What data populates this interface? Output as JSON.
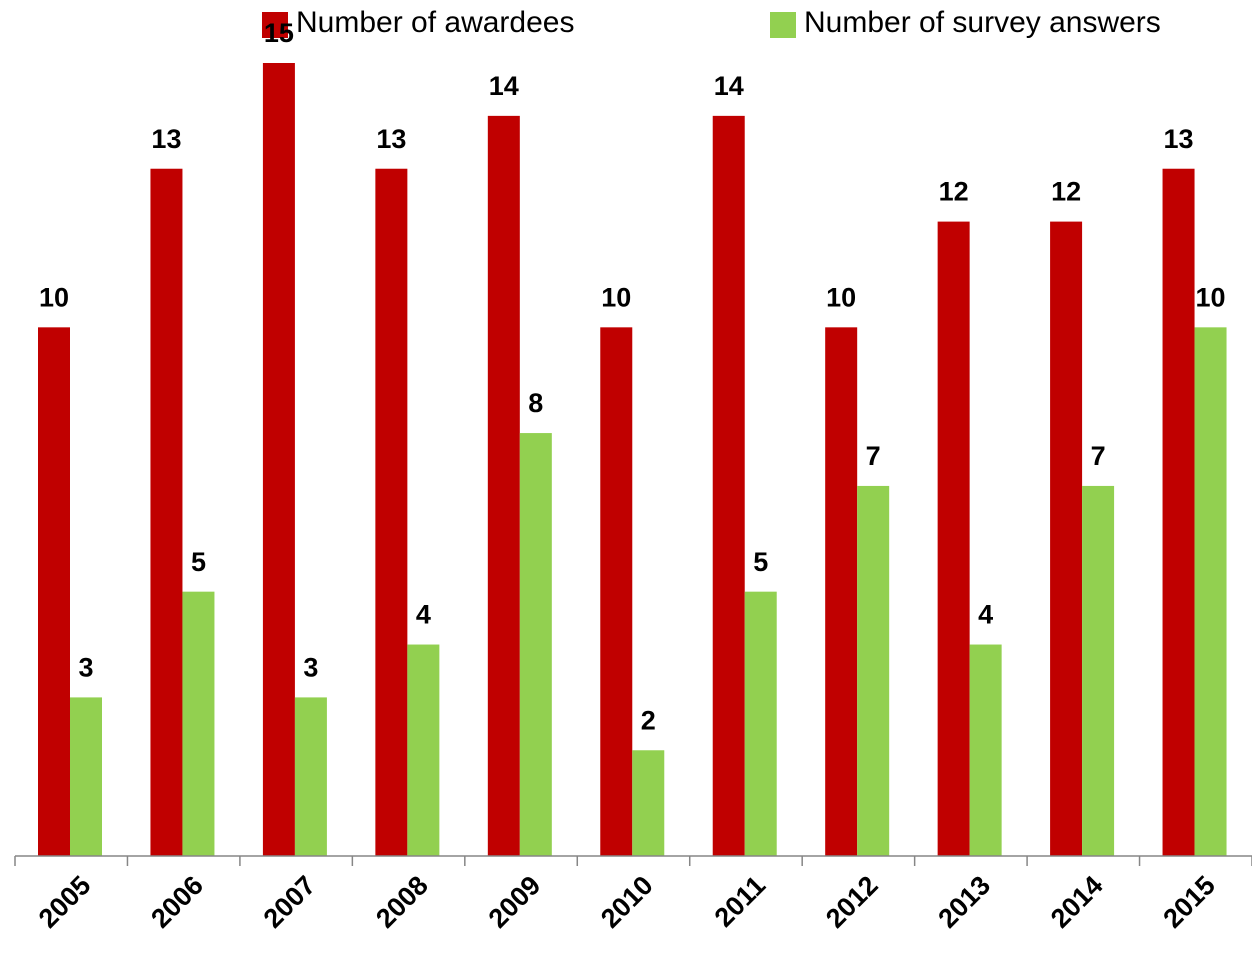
{
  "chart_data": {
    "type": "bar",
    "categories": [
      "2005",
      "2006",
      "2007",
      "2008",
      "2009",
      "2010",
      "2011",
      "2012",
      "2013",
      "2014",
      "2015"
    ],
    "series": [
      {
        "name": "Number of awardees",
        "color": "#c00000",
        "values": [
          10,
          13,
          15,
          13,
          14,
          10,
          14,
          10,
          12,
          12,
          13
        ]
      },
      {
        "name": "Number of survey answers",
        "color": "#92d050",
        "values": [
          3,
          5,
          3,
          4,
          8,
          2,
          5,
          7,
          4,
          7,
          10
        ]
      }
    ],
    "ylim": [
      0,
      15
    ],
    "legend": "top"
  }
}
